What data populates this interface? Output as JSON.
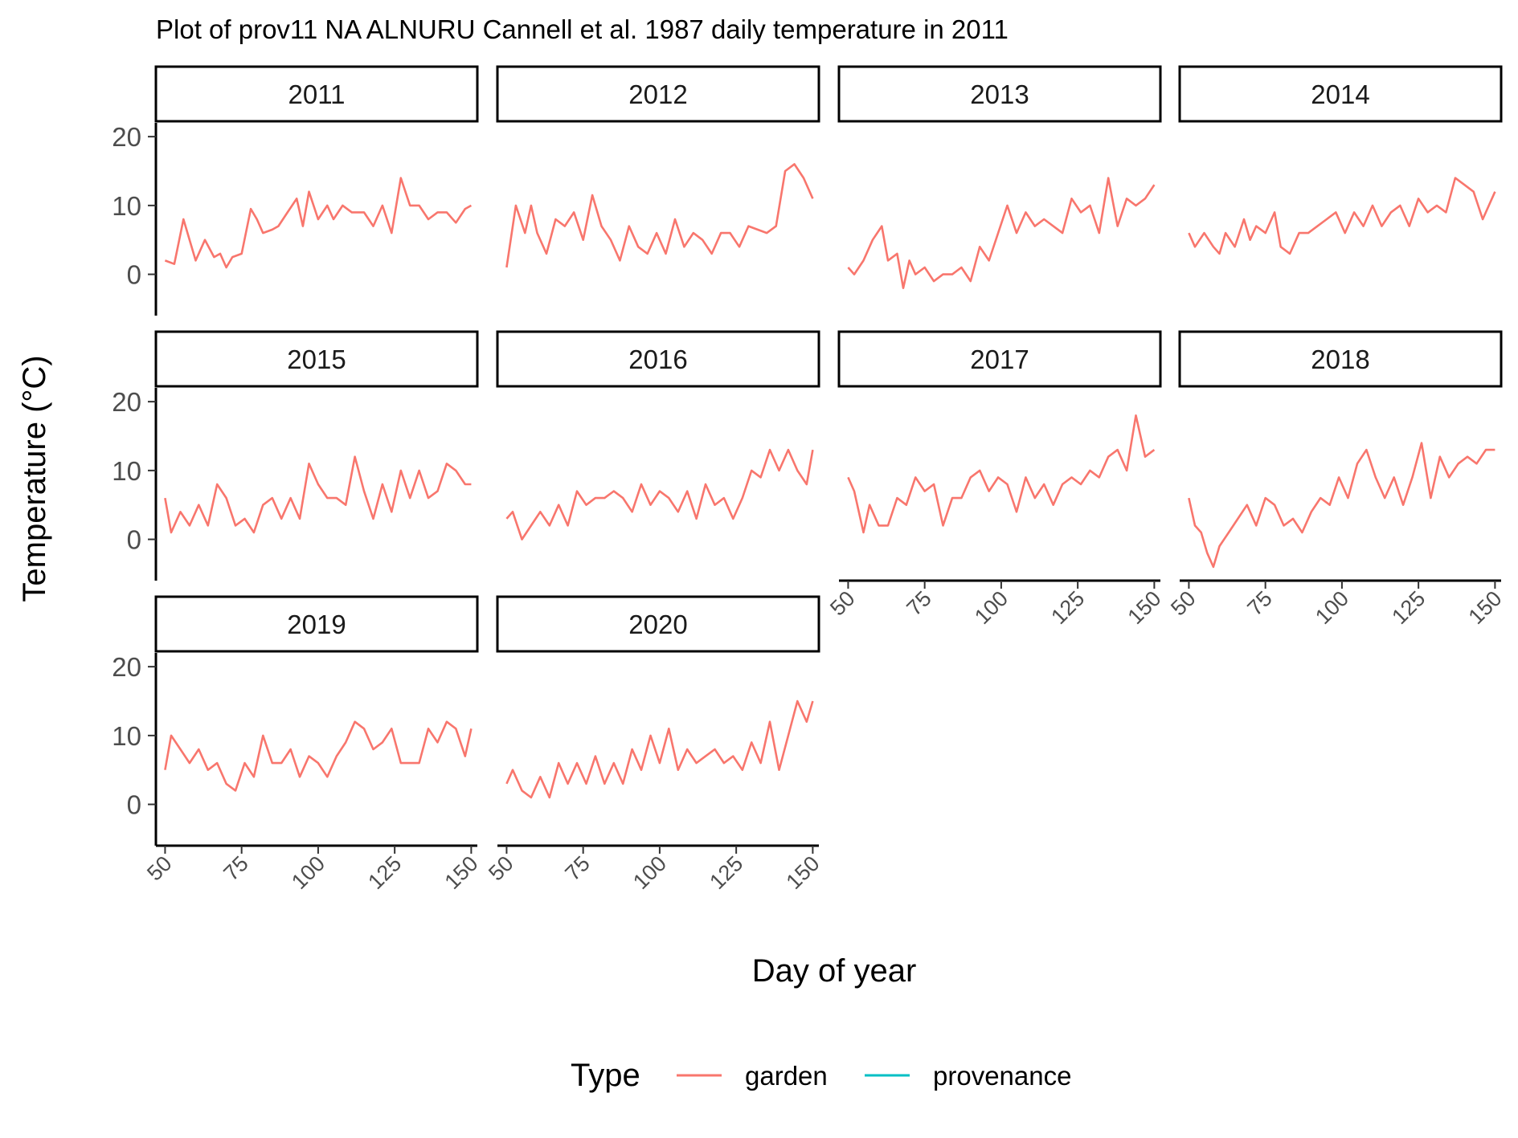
{
  "chart_data": {
    "type": "line",
    "title": "Plot of prov11 NA ALNURU Cannell et al. 1987 daily temperature in 2011",
    "xlabel": "Day of year",
    "ylabel": "Temperature (°C)",
    "xlim": [
      47,
      152
    ],
    "ylim": [
      -6,
      22
    ],
    "x_ticks": [
      50,
      75,
      100,
      125,
      150
    ],
    "y_ticks": [
      0,
      10,
      20
    ],
    "x_tick_labels": [
      "50",
      "75",
      "100",
      "125",
      "150"
    ],
    "y_tick_labels": [
      "0",
      "10",
      "20"
    ],
    "legend": {
      "title": "Type",
      "position": "bottom",
      "entries": [
        {
          "name": "garden",
          "color": "#F8766D"
        },
        {
          "name": "provenance",
          "color": "#00BFC4"
        }
      ]
    },
    "grid": false,
    "panels": [
      {
        "facet": "2011",
        "series": [
          {
            "name": "garden",
            "x": [
              50,
              53,
              56,
              58,
              60,
              63,
              66,
              68,
              70,
              72,
              75,
              78,
              80,
              82,
              85,
              87,
              90,
              93,
              95,
              97,
              100,
              103,
              105,
              108,
              111,
              115,
              118,
              121,
              124,
              127,
              130,
              133,
              136,
              139,
              142,
              145,
              148,
              150
            ],
            "y": [
              2,
              1.5,
              8,
              5,
              2,
              5,
              2.5,
              3,
              1,
              2.5,
              3,
              9.5,
              8,
              6,
              6.5,
              7,
              9,
              11,
              7,
              12,
              8,
              10,
              8,
              10,
              9,
              9,
              7,
              10,
              6,
              14,
              10,
              10,
              8,
              9,
              9,
              7.5,
              9.5,
              10
            ]
          }
        ]
      },
      {
        "facet": "2012",
        "series": [
          {
            "name": "garden",
            "x": [
              50,
              53,
              56,
              58,
              60,
              63,
              66,
              69,
              72,
              75,
              78,
              81,
              84,
              87,
              90,
              93,
              96,
              99,
              102,
              105,
              108,
              111,
              114,
              117,
              120,
              123,
              126,
              129,
              132,
              135,
              138,
              141,
              144,
              147,
              150
            ],
            "y": [
              1,
              10,
              6,
              10,
              6,
              3,
              8,
              7,
              9,
              5,
              11.5,
              7,
              5,
              2,
              7,
              4,
              3,
              6,
              3,
              8,
              4,
              6,
              5,
              3,
              6,
              6,
              4,
              7,
              6.5,
              6,
              7,
              15,
              16,
              14,
              11
            ]
          }
        ]
      },
      {
        "facet": "2013",
        "series": [
          {
            "name": "garden",
            "x": [
              50,
              52,
              55,
              58,
              61,
              63,
              66,
              68,
              70,
              72,
              75,
              78,
              81,
              84,
              87,
              90,
              93,
              96,
              99,
              102,
              105,
              108,
              111,
              114,
              117,
              120,
              123,
              126,
              129,
              132,
              135,
              138,
              141,
              144,
              147,
              150
            ],
            "y": [
              1,
              0,
              2,
              5,
              7,
              2,
              3,
              -2,
              2,
              0,
              1,
              -1,
              0,
              0,
              1,
              -1,
              4,
              2,
              6,
              10,
              6,
              9,
              7,
              8,
              7,
              6,
              11,
              9,
              10,
              6,
              14,
              7,
              11,
              10,
              11,
              13
            ]
          }
        ]
      },
      {
        "facet": "2014",
        "series": [
          {
            "name": "garden",
            "x": [
              50,
              52,
              55,
              58,
              60,
              62,
              65,
              68,
              70,
              72,
              75,
              78,
              80,
              83,
              86,
              89,
              92,
              95,
              98,
              101,
              104,
              107,
              110,
              113,
              116,
              119,
              122,
              125,
              128,
              131,
              134,
              137,
              140,
              143,
              146,
              150
            ],
            "y": [
              6,
              4,
              6,
              4,
              3,
              6,
              4,
              8,
              5,
              7,
              6,
              9,
              4,
              3,
              6,
              6,
              7,
              8,
              9,
              6,
              9,
              7,
              10,
              7,
              9,
              10,
              7,
              11,
              9,
              10,
              9,
              14,
              13,
              12,
              8,
              12
            ]
          }
        ]
      },
      {
        "facet": "2015",
        "series": [
          {
            "name": "garden",
            "x": [
              50,
              52,
              55,
              58,
              61,
              64,
              67,
              70,
              73,
              76,
              79,
              82,
              85,
              88,
              91,
              94,
              97,
              100,
              103,
              106,
              109,
              112,
              115,
              118,
              121,
              124,
              127,
              130,
              133,
              136,
              139,
              142,
              145,
              148,
              150
            ],
            "y": [
              6,
              1,
              4,
              2,
              5,
              2,
              8,
              6,
              2,
              3,
              1,
              5,
              6,
              3,
              6,
              3,
              11,
              8,
              6,
              6,
              5,
              12,
              7,
              3,
              8,
              4,
              10,
              6,
              10,
              6,
              7,
              11,
              10,
              8,
              8
            ]
          }
        ]
      },
      {
        "facet": "2016",
        "series": [
          {
            "name": "garden",
            "x": [
              50,
              52,
              55,
              58,
              61,
              64,
              67,
              70,
              73,
              76,
              79,
              82,
              85,
              88,
              91,
              94,
              97,
              100,
              103,
              106,
              109,
              112,
              115,
              118,
              121,
              124,
              127,
              130,
              133,
              136,
              139,
              142,
              145,
              148,
              150
            ],
            "y": [
              3,
              4,
              0,
              2,
              4,
              2,
              5,
              2,
              7,
              5,
              6,
              6,
              7,
              6,
              4,
              8,
              5,
              7,
              6,
              4,
              7,
              3,
              8,
              5,
              6,
              3,
              6,
              10,
              9,
              13,
              10,
              13,
              10,
              8,
              13
            ]
          }
        ]
      },
      {
        "facet": "2017",
        "series": [
          {
            "name": "garden",
            "x": [
              50,
              52,
              55,
              57,
              60,
              63,
              66,
              69,
              72,
              75,
              78,
              81,
              84,
              87,
              90,
              93,
              96,
              99,
              102,
              105,
              108,
              111,
              114,
              117,
              120,
              123,
              126,
              129,
              132,
              135,
              138,
              141,
              144,
              147,
              150
            ],
            "y": [
              9,
              7,
              1,
              5,
              2,
              2,
              6,
              5,
              9,
              7,
              8,
              2,
              6,
              6,
              9,
              10,
              7,
              9,
              8,
              4,
              9,
              6,
              8,
              5,
              8,
              9,
              8,
              10,
              9,
              12,
              13,
              10,
              18,
              12,
              13
            ]
          }
        ]
      },
      {
        "facet": "2018",
        "series": [
          {
            "name": "garden",
            "x": [
              50,
              52,
              54,
              56,
              58,
              60,
              63,
              66,
              69,
              72,
              75,
              78,
              81,
              84,
              87,
              90,
              93,
              96,
              99,
              102,
              105,
              108,
              111,
              114,
              117,
              120,
              123,
              126,
              129,
              132,
              135,
              138,
              141,
              144,
              147,
              150
            ],
            "y": [
              6,
              2,
              1,
              -2,
              -4,
              -1,
              1,
              3,
              5,
              2,
              6,
              5,
              2,
              3,
              1,
              4,
              6,
              5,
              9,
              6,
              11,
              13,
              9,
              6,
              9,
              5,
              9,
              14,
              6,
              12,
              9,
              11,
              12,
              11,
              13,
              13
            ]
          }
        ]
      },
      {
        "facet": "2019",
        "series": [
          {
            "name": "garden",
            "x": [
              50,
              52,
              55,
              58,
              61,
              64,
              67,
              70,
              73,
              76,
              79,
              82,
              85,
              88,
              91,
              94,
              97,
              100,
              103,
              106,
              109,
              112,
              115,
              118,
              121,
              124,
              127,
              130,
              133,
              136,
              139,
              142,
              145,
              148,
              150
            ],
            "y": [
              5,
              10,
              8,
              6,
              8,
              5,
              6,
              3,
              2,
              6,
              4,
              10,
              6,
              6,
              8,
              4,
              7,
              6,
              4,
              7,
              9,
              12,
              11,
              8,
              9,
              11,
              6,
              6,
              6,
              11,
              9,
              12,
              11,
              7,
              11
            ]
          }
        ]
      },
      {
        "facet": "2020",
        "series": [
          {
            "name": "garden",
            "x": [
              50,
              52,
              55,
              58,
              61,
              64,
              67,
              70,
              73,
              76,
              79,
              82,
              85,
              88,
              91,
              94,
              97,
              100,
              103,
              106,
              109,
              112,
              115,
              118,
              121,
              124,
              127,
              130,
              133,
              136,
              139,
              142,
              145,
              148,
              150
            ],
            "y": [
              3,
              5,
              2,
              1,
              4,
              1,
              6,
              3,
              6,
              3,
              7,
              3,
              6,
              3,
              8,
              5,
              10,
              6,
              11,
              5,
              8,
              6,
              7,
              8,
              6,
              7,
              5,
              9,
              6,
              12,
              5,
              10,
              15,
              12,
              15
            ]
          }
        ]
      }
    ]
  }
}
